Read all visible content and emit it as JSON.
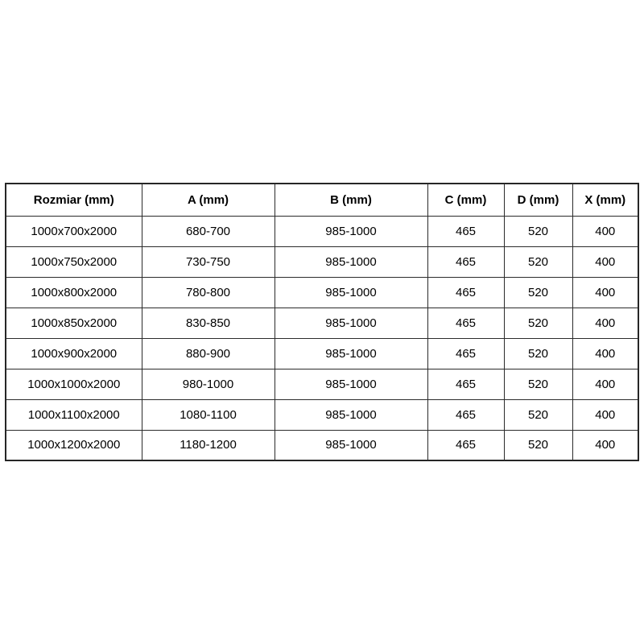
{
  "page": {
    "background_color": "#ffffff",
    "text_color": "#000000",
    "border_color": "#2b2b2b"
  },
  "table": {
    "columns": [
      "Rozmiar (mm)",
      "A (mm)",
      "B (mm)",
      "C (mm)",
      "D (mm)",
      "X (mm)"
    ],
    "rows": [
      [
        "1000x700x2000",
        "680-700",
        "985-1000",
        "465",
        "520",
        "400"
      ],
      [
        "1000x750x2000",
        "730-750",
        "985-1000",
        "465",
        "520",
        "400"
      ],
      [
        "1000x800x2000",
        "780-800",
        "985-1000",
        "465",
        "520",
        "400"
      ],
      [
        "1000x850x2000",
        "830-850",
        "985-1000",
        "465",
        "520",
        "400"
      ],
      [
        "1000x900x2000",
        "880-900",
        "985-1000",
        "465",
        "520",
        "400"
      ],
      [
        "1000x1000x2000",
        "980-1000",
        "985-1000",
        "465",
        "520",
        "400"
      ],
      [
        "1000x1100x2000",
        "1080-1100",
        "985-1000",
        "465",
        "520",
        "400"
      ],
      [
        "1000x1200x2000",
        "1180-1200",
        "985-1000",
        "465",
        "520",
        "400"
      ]
    ]
  }
}
